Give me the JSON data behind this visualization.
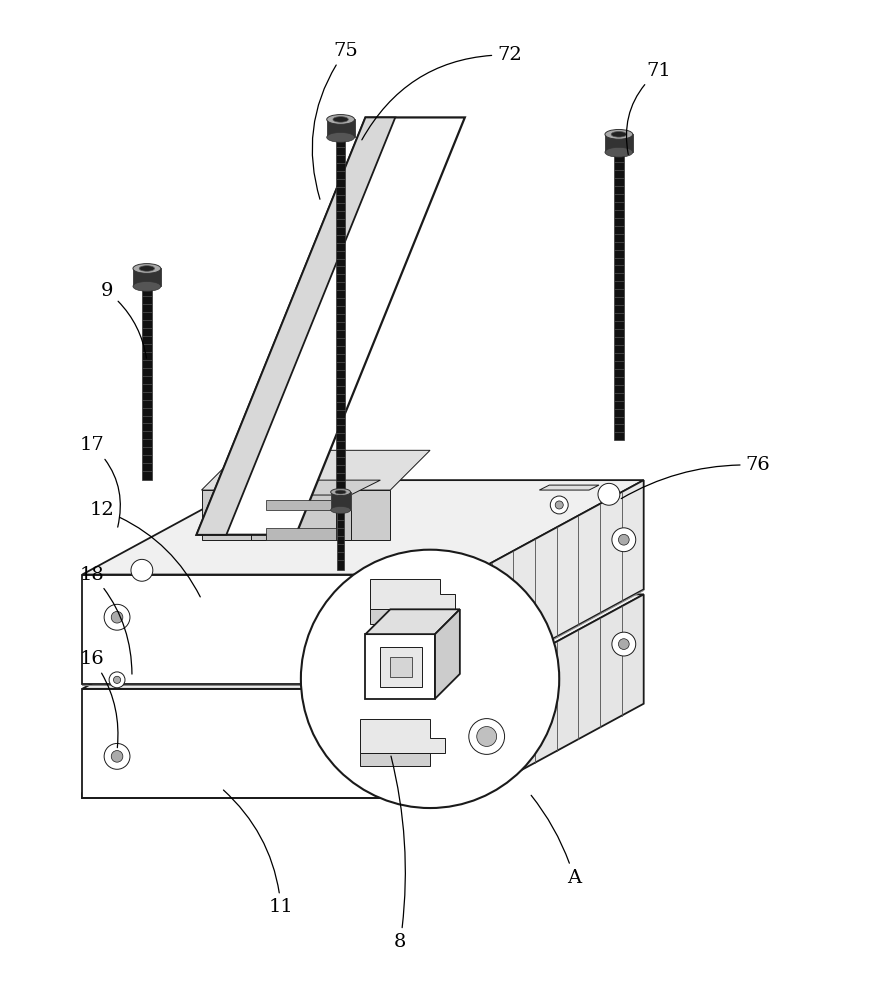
{
  "bg_color": "#ffffff",
  "line_color": "#1a1a1a",
  "fig_width": 8.77,
  "fig_height": 10.0,
  "lw_main": 1.3,
  "lw_thin": 0.7,
  "lw_thick": 2.0
}
